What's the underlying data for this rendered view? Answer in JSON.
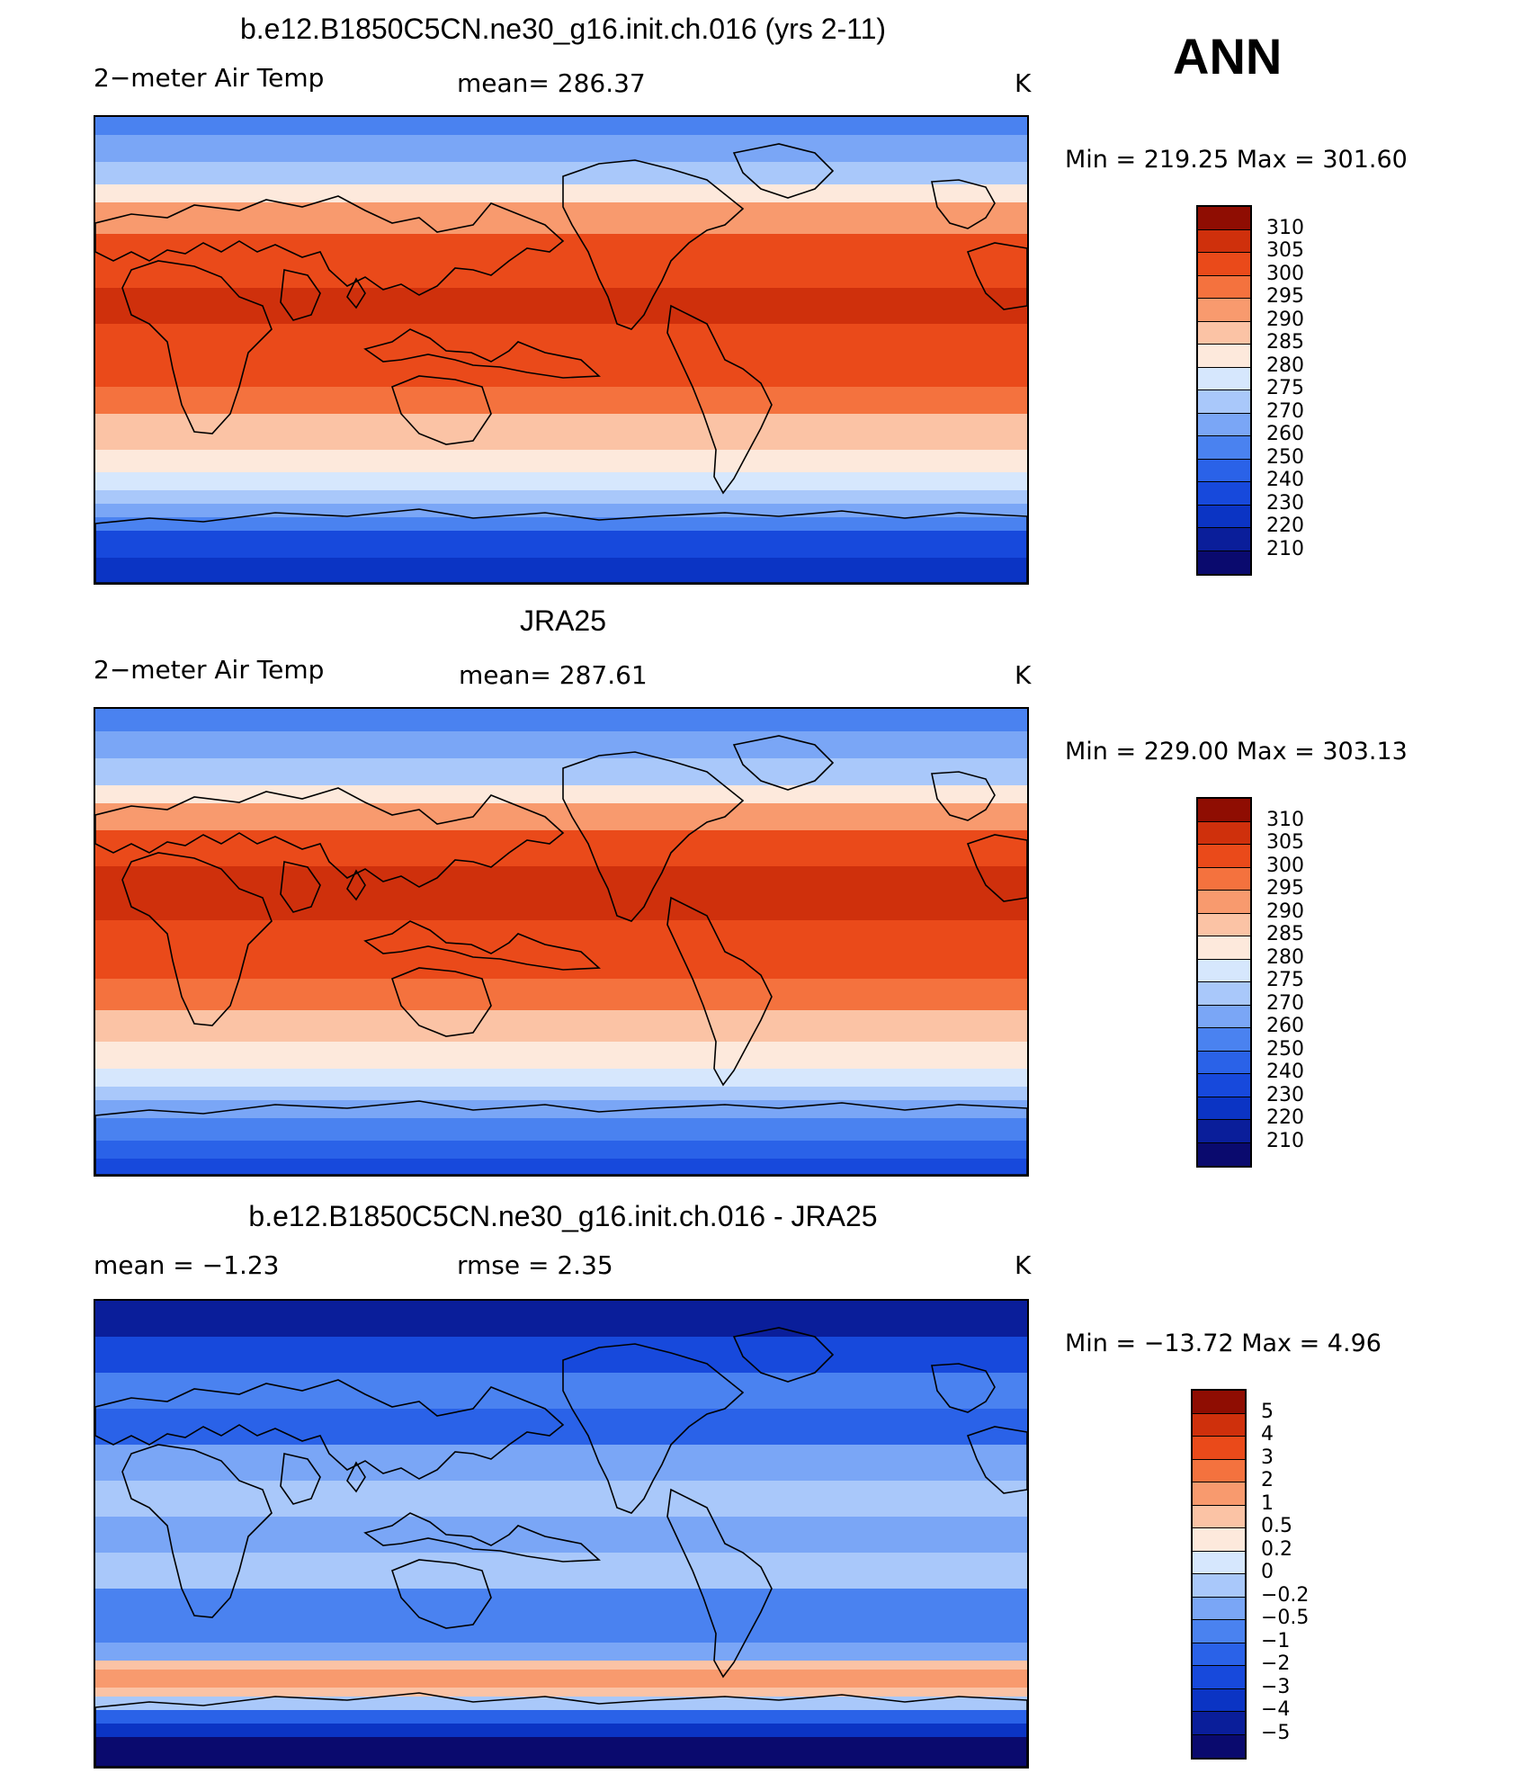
{
  "season": "ANN",
  "colors": {
    "temp_scale": [
      "#0a0a6e",
      "#0a1e9a",
      "#0b34c4",
      "#1749dc",
      "#2a62e8",
      "#4a82f0",
      "#7aa6f6",
      "#a9c8fa",
      "#d6e7fd",
      "#fde9dc",
      "#fbc3a5",
      "#f89a6e",
      "#f4723e",
      "#ea4a1a",
      "#cf300c",
      "#8f0d02"
    ],
    "diff_scale": [
      "#0a0a6e",
      "#0a1e9a",
      "#0b34c4",
      "#1749dc",
      "#2a62e8",
      "#4a82f0",
      "#7aa6f6",
      "#a9c8fa",
      "#d6e7fd",
      "#fde9dc",
      "#fbc3a5",
      "#f89a6e",
      "#f4723e",
      "#ea4a1a",
      "#cf300c",
      "#8f0d02"
    ]
  },
  "panels": [
    {
      "id": "model",
      "title": "b.e12.B1850C5CN.ne30_g16.init.ch.016 (yrs 2-11)",
      "variable": "2−meter Air Temp",
      "stat": "mean=  286.37",
      "units": "K",
      "minmax": "Min  =  219.25  Max  =  301.60",
      "ticks": [
        "310",
        "305",
        "300",
        "295",
        "290",
        "285",
        "280",
        "275",
        "270",
        "260",
        "250",
        "240",
        "230",
        "220",
        "210"
      ],
      "map_style": "model"
    },
    {
      "id": "obs",
      "title": "JRA25",
      "variable": "2−meter Air Temp",
      "stat": "mean=  287.61",
      "units": "K",
      "minmax": "Min  =  229.00  Max  =  303.13",
      "ticks": [
        "310",
        "305",
        "300",
        "295",
        "290",
        "285",
        "280",
        "275",
        "270",
        "260",
        "250",
        "240",
        "230",
        "220",
        "210"
      ],
      "map_style": "obs"
    },
    {
      "id": "diff",
      "title": "b.e12.B1850C5CN.ne30_g16.init.ch.016 - JRA25",
      "variable": "mean  =    −1.23",
      "stat": "rmse  =     2.35",
      "units": "K",
      "minmax": "Min  =  −13.72  Max  =     4.96",
      "ticks": [
        "5",
        "4",
        "3",
        "2",
        "1",
        "0.5",
        "0.2",
        "0",
        "−0.2",
        "−0.5",
        "−1",
        "−2",
        "−3",
        "−4",
        "−5"
      ],
      "map_style": "diff"
    }
  ]
}
